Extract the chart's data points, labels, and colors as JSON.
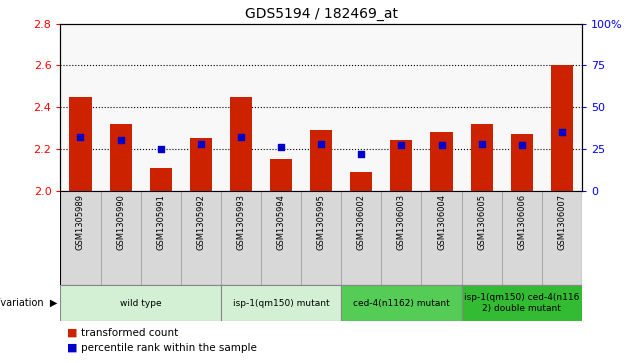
{
  "title": "GDS5194 / 182469_at",
  "samples": [
    "GSM1305989",
    "GSM1305990",
    "GSM1305991",
    "GSM1305992",
    "GSM1305993",
    "GSM1305994",
    "GSM1305995",
    "GSM1306002",
    "GSM1306003",
    "GSM1306004",
    "GSM1306005",
    "GSM1306006",
    "GSM1306007"
  ],
  "transformed_count": [
    2.45,
    2.32,
    2.11,
    2.25,
    2.45,
    2.15,
    2.29,
    2.09,
    2.24,
    2.28,
    2.32,
    2.27,
    2.6
  ],
  "percentile_rank": [
    32,
    30,
    25,
    28,
    32,
    26,
    28,
    22,
    27,
    27,
    28,
    27,
    35
  ],
  "ylim_left": [
    2.0,
    2.8
  ],
  "ylim_right": [
    0,
    100
  ],
  "yticks_left": [
    2.0,
    2.2,
    2.4,
    2.6,
    2.8
  ],
  "yticks_right": [
    0,
    25,
    50,
    75,
    100
  ],
  "bar_color": "#cc2200",
  "marker_color": "#0000cc",
  "bar_width": 0.55,
  "group_spans": [
    {
      "start": 0,
      "end": 3,
      "label": "wild type",
      "color": "#d4f0d4"
    },
    {
      "start": 4,
      "end": 6,
      "label": "isp-1(qm150) mutant",
      "color": "#d4f0d4"
    },
    {
      "start": 7,
      "end": 9,
      "label": "ced-4(n1162) mutant",
      "color": "#55cc55"
    },
    {
      "start": 10,
      "end": 12,
      "label": "isp-1(qm150) ced-4(n116\n2) double mutant",
      "color": "#33bb33"
    }
  ],
  "xlabel_label": "genotype/variation",
  "legend_bar_label": "transformed count",
  "legend_marker_label": "percentile rank within the sample",
  "background_color": "#ffffff",
  "dotted_lines": [
    2.2,
    2.4,
    2.6
  ],
  "base_value": 2.0,
  "chart_bg": "#f8f8f8",
  "sample_cell_color": "#d8d8d8",
  "title_fontsize": 10
}
